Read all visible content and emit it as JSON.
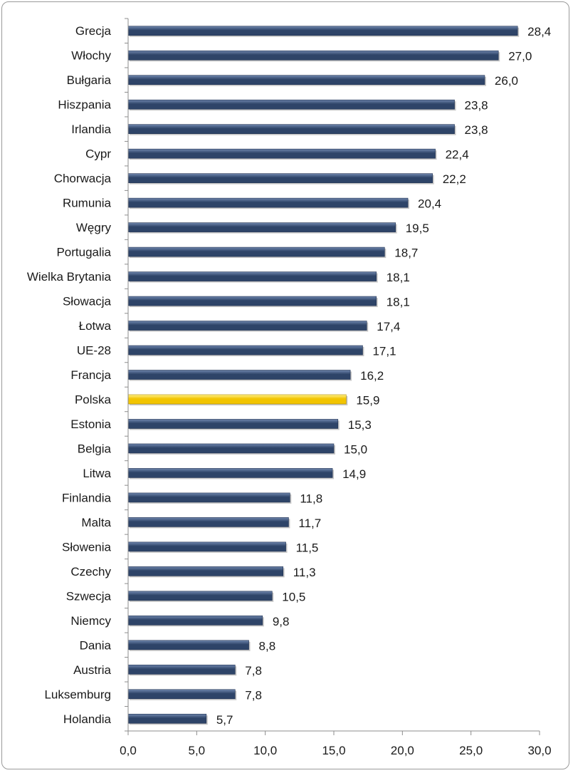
{
  "chart_data": {
    "type": "bar",
    "orientation": "horizontal",
    "categories": [
      "Grecja",
      "Włochy",
      "Bułgaria",
      "Hiszpania",
      "Irlandia",
      "Cypr",
      "Chorwacja",
      "Rumunia",
      "Węgry",
      "Portugalia",
      "Wielka Brytania",
      "Słowacja",
      "Łotwa",
      "UE-28",
      "Francja",
      "Polska",
      "Estonia",
      "Belgia",
      "Litwa",
      "Finlandia",
      "Malta",
      "Słowenia",
      "Czechy",
      "Szwecja",
      "Niemcy",
      "Dania",
      "Austria",
      "Luksemburg",
      "Holandia"
    ],
    "values": [
      28.4,
      27.0,
      26.0,
      23.8,
      23.8,
      22.4,
      22.2,
      20.4,
      19.5,
      18.7,
      18.1,
      18.1,
      17.4,
      17.1,
      16.2,
      15.9,
      15.3,
      15.0,
      14.9,
      11.8,
      11.7,
      11.5,
      11.3,
      10.5,
      9.8,
      8.8,
      7.8,
      7.8,
      5.7
    ],
    "value_labels": [
      "28,4",
      "27,0",
      "26,0",
      "23,8",
      "23,8",
      "22,4",
      "22,2",
      "20,4",
      "19,5",
      "18,7",
      "18,1",
      "18,1",
      "17,4",
      "17,1",
      "16,2",
      "15,9",
      "15,3",
      "15,0",
      "14,9",
      "11,8",
      "11,7",
      "11,5",
      "11,3",
      "10,5",
      "9,8",
      "8,8",
      "7,8",
      "7,8",
      "5,7"
    ],
    "highlight": "Polska",
    "xlim": [
      0,
      30
    ],
    "xticks": [
      0,
      5,
      10,
      15,
      20,
      25,
      30
    ],
    "xtick_labels": [
      "0,0",
      "5,0",
      "10,0",
      "15,0",
      "20,0",
      "25,0",
      "30,0"
    ],
    "grid": false,
    "title": "",
    "xlabel": "",
    "ylabel": "",
    "colors": {
      "bar": "#2e4468",
      "bar_light": "#6f86ad",
      "highlight": "#f2c400",
      "highlight_light": "#fff08a",
      "axis": "#8c8c8c"
    }
  }
}
